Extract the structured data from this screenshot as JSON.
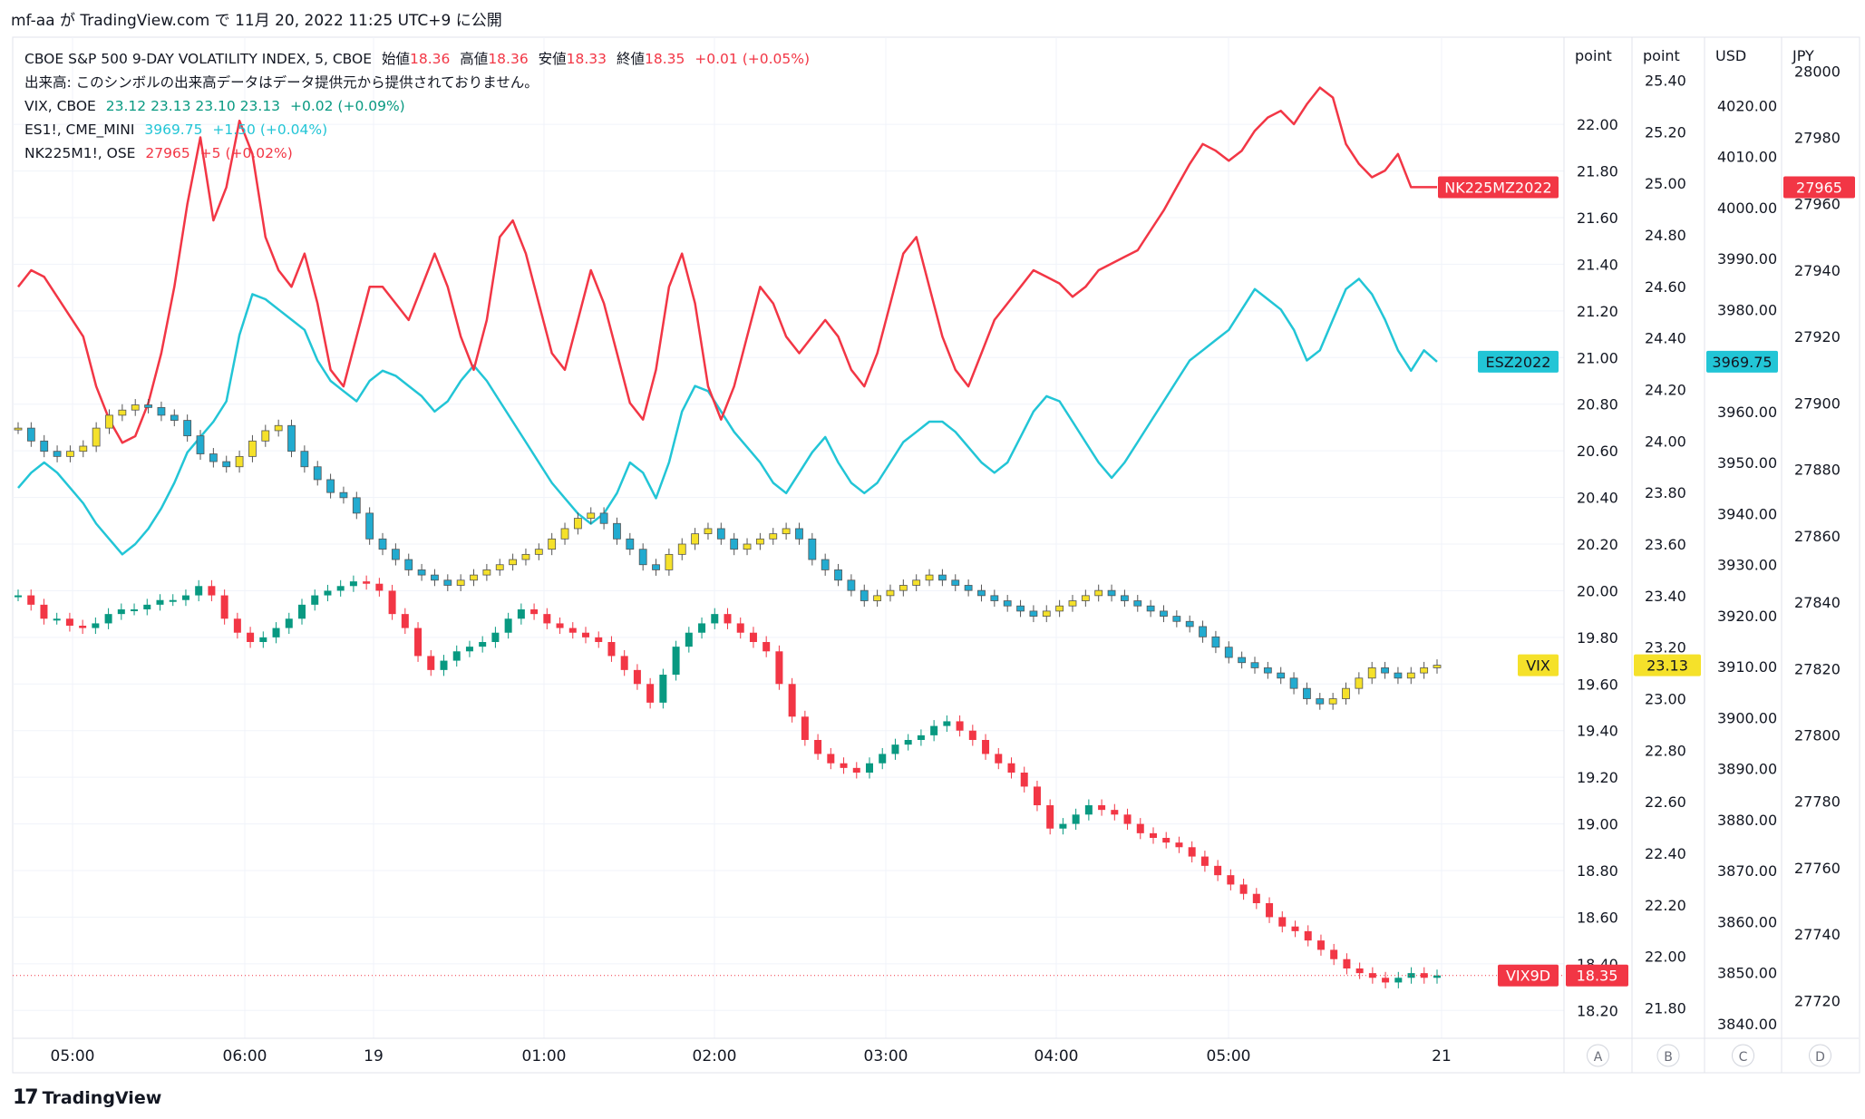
{
  "header": {
    "text": "mf-aa が TradingView.com で 11月 20, 2022 11:25 UTC+9 に公開"
  },
  "legend": {
    "main": {
      "symbol": "CBOE S&P 500 9-DAY VOLATILITY INDEX, 5, CBOE",
      "open_label": "始値",
      "open": "18.36",
      "high_label": "高値",
      "high": "18.36",
      "low_label": "安値",
      "low": "18.33",
      "close_label": "終値",
      "close": "18.35",
      "change": "+0.01 (+0.05%)"
    },
    "volume_note": "出来高: このシンボルの出来高データはデータ提供元から提供されておりません。",
    "vix": {
      "symbol": "VIX, CBOE",
      "ohlc": "23.12  23.13  23.10  23.13",
      "change": "+0.02 (+0.09%)"
    },
    "es": {
      "symbol": "ES1!, CME_MINI",
      "value": "3969.75",
      "change": "+1.50 (+0.04%)"
    },
    "nk": {
      "symbol": "NK225M1!, OSE",
      "value": "27965",
      "change": "+5 (+0.02%)"
    }
  },
  "footer": {
    "brand": "TradingView"
  },
  "colors": {
    "up": "#089981",
    "down": "#f23645",
    "vix_up": "#f5e12a",
    "vix_down": "#22abd0",
    "es_line": "#22c5d6",
    "nk_line": "#f23645",
    "vix_label": "#f5e12a"
  },
  "chart_data": {
    "type": "candlestick",
    "timeframe": "5",
    "x_tick_labels": [
      "05:00",
      "06:00",
      "19",
      "01:00",
      "02:00",
      "03:00",
      "04:00",
      "05:00",
      "21"
    ],
    "scales": [
      {
        "id": "A",
        "unit": "point",
        "ticks": [
          "22.00",
          "21.80",
          "21.60",
          "21.40",
          "21.20",
          "21.00",
          "20.80",
          "20.60",
          "20.40",
          "20.20",
          "20.00",
          "19.80",
          "19.60",
          "19.40",
          "19.20",
          "19.00",
          "18.80",
          "18.60",
          "18.40",
          "18.20"
        ],
        "range": [
          18.1,
          22.3
        ]
      },
      {
        "id": "B",
        "unit": "point",
        "ticks": [
          "25.40",
          "25.20",
          "25.00",
          "24.80",
          "24.60",
          "24.40",
          "24.20",
          "24.00",
          "23.80",
          "23.60",
          "23.40",
          "23.20",
          "23.00",
          "22.80",
          "22.60",
          "22.40",
          "22.20",
          "22.00",
          "21.80"
        ],
        "range": [
          21.7,
          25.5
        ]
      },
      {
        "id": "C",
        "unit": "USD",
        "ticks": [
          "4020.00",
          "4010.00",
          "4000.00",
          "3990.00",
          "3980.00",
          "3970.00",
          "3960.00",
          "3950.00",
          "3940.00",
          "3930.00",
          "3920.00",
          "3910.00",
          "3900.00",
          "3890.00",
          "3880.00",
          "3870.00",
          "3860.00",
          "3850.00",
          "3840.00"
        ],
        "range": [
          3838,
          4030
        ]
      },
      {
        "id": "D",
        "unit": "JPY",
        "ticks": [
          "28000",
          "27980",
          "27960",
          "27940",
          "27920",
          "27900",
          "27880",
          "27860",
          "27840",
          "27820",
          "27800",
          "27780",
          "27760",
          "27740",
          "27720"
        ],
        "range": [
          27710,
          28005
        ]
      }
    ],
    "series": [
      {
        "name": "VIX9D",
        "type": "candlestick",
        "scale": "A",
        "last": "18.35",
        "close": [
          19.98,
          19.94,
          19.88,
          19.88,
          19.85,
          19.84,
          19.86,
          19.9,
          19.92,
          19.92,
          19.94,
          19.96,
          19.96,
          19.98,
          20.02,
          19.98,
          19.88,
          19.82,
          19.78,
          19.8,
          19.84,
          19.88,
          19.94,
          19.98,
          20.0,
          20.02,
          20.04,
          20.03,
          20.0,
          19.9,
          19.84,
          19.72,
          19.66,
          19.7,
          19.74,
          19.76,
          19.78,
          19.82,
          19.88,
          19.92,
          19.9,
          19.86,
          19.84,
          19.82,
          19.8,
          19.78,
          19.72,
          19.66,
          19.6,
          19.52,
          19.64,
          19.76,
          19.82,
          19.86,
          19.9,
          19.86,
          19.82,
          19.78,
          19.74,
          19.6,
          19.46,
          19.36,
          19.3,
          19.26,
          19.24,
          19.22,
          19.26,
          19.3,
          19.34,
          19.36,
          19.38,
          19.42,
          19.44,
          19.4,
          19.36,
          19.3,
          19.26,
          19.22,
          19.16,
          19.08,
          18.98,
          19.0,
          19.04,
          19.08,
          19.06,
          19.04,
          19.0,
          18.96,
          18.94,
          18.92,
          18.9,
          18.86,
          18.82,
          18.78,
          18.74,
          18.7,
          18.66,
          18.6,
          18.56,
          18.54,
          18.5,
          18.46,
          18.42,
          18.38,
          18.36,
          18.34,
          18.32,
          18.34,
          18.36,
          18.34,
          18.35
        ]
      },
      {
        "name": "VIX",
        "type": "candlestick",
        "scale": "B",
        "last": "23.13",
        "close": [
          24.05,
          24.0,
          23.96,
          23.94,
          23.96,
          23.98,
          24.05,
          24.1,
          24.12,
          24.14,
          24.13,
          24.1,
          24.08,
          24.02,
          23.95,
          23.92,
          23.9,
          23.94,
          24.0,
          24.04,
          24.06,
          23.96,
          23.9,
          23.85,
          23.8,
          23.78,
          23.72,
          23.62,
          23.58,
          23.54,
          23.5,
          23.48,
          23.46,
          23.44,
          23.46,
          23.48,
          23.5,
          23.52,
          23.54,
          23.56,
          23.58,
          23.62,
          23.66,
          23.7,
          23.72,
          23.68,
          23.62,
          23.58,
          23.52,
          23.5,
          23.56,
          23.6,
          23.64,
          23.66,
          23.62,
          23.58,
          23.6,
          23.62,
          23.64,
          23.66,
          23.62,
          23.54,
          23.5,
          23.46,
          23.42,
          23.38,
          23.4,
          23.42,
          23.44,
          23.46,
          23.48,
          23.46,
          23.44,
          23.42,
          23.4,
          23.38,
          23.36,
          23.34,
          23.32,
          23.34,
          23.36,
          23.38,
          23.4,
          23.42,
          23.4,
          23.38,
          23.36,
          23.34,
          23.32,
          23.3,
          23.28,
          23.24,
          23.2,
          23.16,
          23.14,
          23.12,
          23.1,
          23.08,
          23.04,
          23.0,
          22.98,
          23.0,
          23.04,
          23.08,
          23.12,
          23.1,
          23.08,
          23.1,
          23.12,
          23.13
        ]
      },
      {
        "name": "ES1!",
        "type": "line",
        "scale": "C",
        "last": "3969.75",
        "close": [
          3945,
          3948,
          3950,
          3948,
          3945,
          3942,
          3938,
          3935,
          3932,
          3934,
          3937,
          3941,
          3946,
          3952,
          3955,
          3958,
          3962,
          3975,
          3983,
          3982,
          3980,
          3978,
          3976,
          3970,
          3966,
          3964,
          3962,
          3966,
          3968,
          3967,
          3965,
          3963,
          3960,
          3962,
          3966,
          3969,
          3966,
          3962,
          3958,
          3954,
          3950,
          3946,
          3943,
          3940,
          3938,
          3940,
          3944,
          3950,
          3948,
          3943,
          3950,
          3960,
          3965,
          3964,
          3960,
          3956,
          3953,
          3950,
          3946,
          3944,
          3948,
          3952,
          3955,
          3950,
          3946,
          3944,
          3946,
          3950,
          3954,
          3956,
          3958,
          3958,
          3956,
          3953,
          3950,
          3948,
          3950,
          3955,
          3960,
          3963,
          3962,
          3958,
          3954,
          3950,
          3947,
          3950,
          3954,
          3958,
          3962,
          3966,
          3970,
          3972,
          3974,
          3976,
          3980,
          3984,
          3982,
          3980,
          3976,
          3970,
          3972,
          3978,
          3984,
          3986,
          3983,
          3978,
          3972,
          3968,
          3972,
          3969.75
        ]
      },
      {
        "name": "NK225M1!",
        "type": "line",
        "scale": "D",
        "last": "27965",
        "close": [
          27935,
          27940,
          27938,
          27932,
          27926,
          27920,
          27905,
          27895,
          27888,
          27890,
          27900,
          27915,
          27935,
          27960,
          27980,
          27955,
          27965,
          27985,
          27975,
          27950,
          27940,
          27935,
          27945,
          27930,
          27910,
          27905,
          27920,
          27935,
          27935,
          27930,
          27925,
          27935,
          27945,
          27935,
          27920,
          27910,
          27925,
          27950,
          27955,
          27945,
          27930,
          27915,
          27910,
          27925,
          27940,
          27930,
          27915,
          27900,
          27895,
          27910,
          27935,
          27945,
          27930,
          27905,
          27895,
          27905,
          27920,
          27935,
          27930,
          27920,
          27915,
          27920,
          27925,
          27920,
          27910,
          27905,
          27915,
          27930,
          27945,
          27950,
          27935,
          27920,
          27910,
          27905,
          27915,
          27925,
          27930,
          27935,
          27940,
          27938,
          27936,
          27932,
          27935,
          27940,
          27942,
          27944,
          27946,
          27952,
          27958,
          27965,
          27972,
          27978,
          27976,
          27973,
          27976,
          27982,
          27986,
          27988,
          27984,
          27990,
          27995,
          27992,
          27978,
          27972,
          27968,
          27970,
          27975,
          27965,
          27965,
          27965
        ]
      }
    ],
    "axis_labels": [
      "A",
      "B",
      "C",
      "D"
    ]
  }
}
